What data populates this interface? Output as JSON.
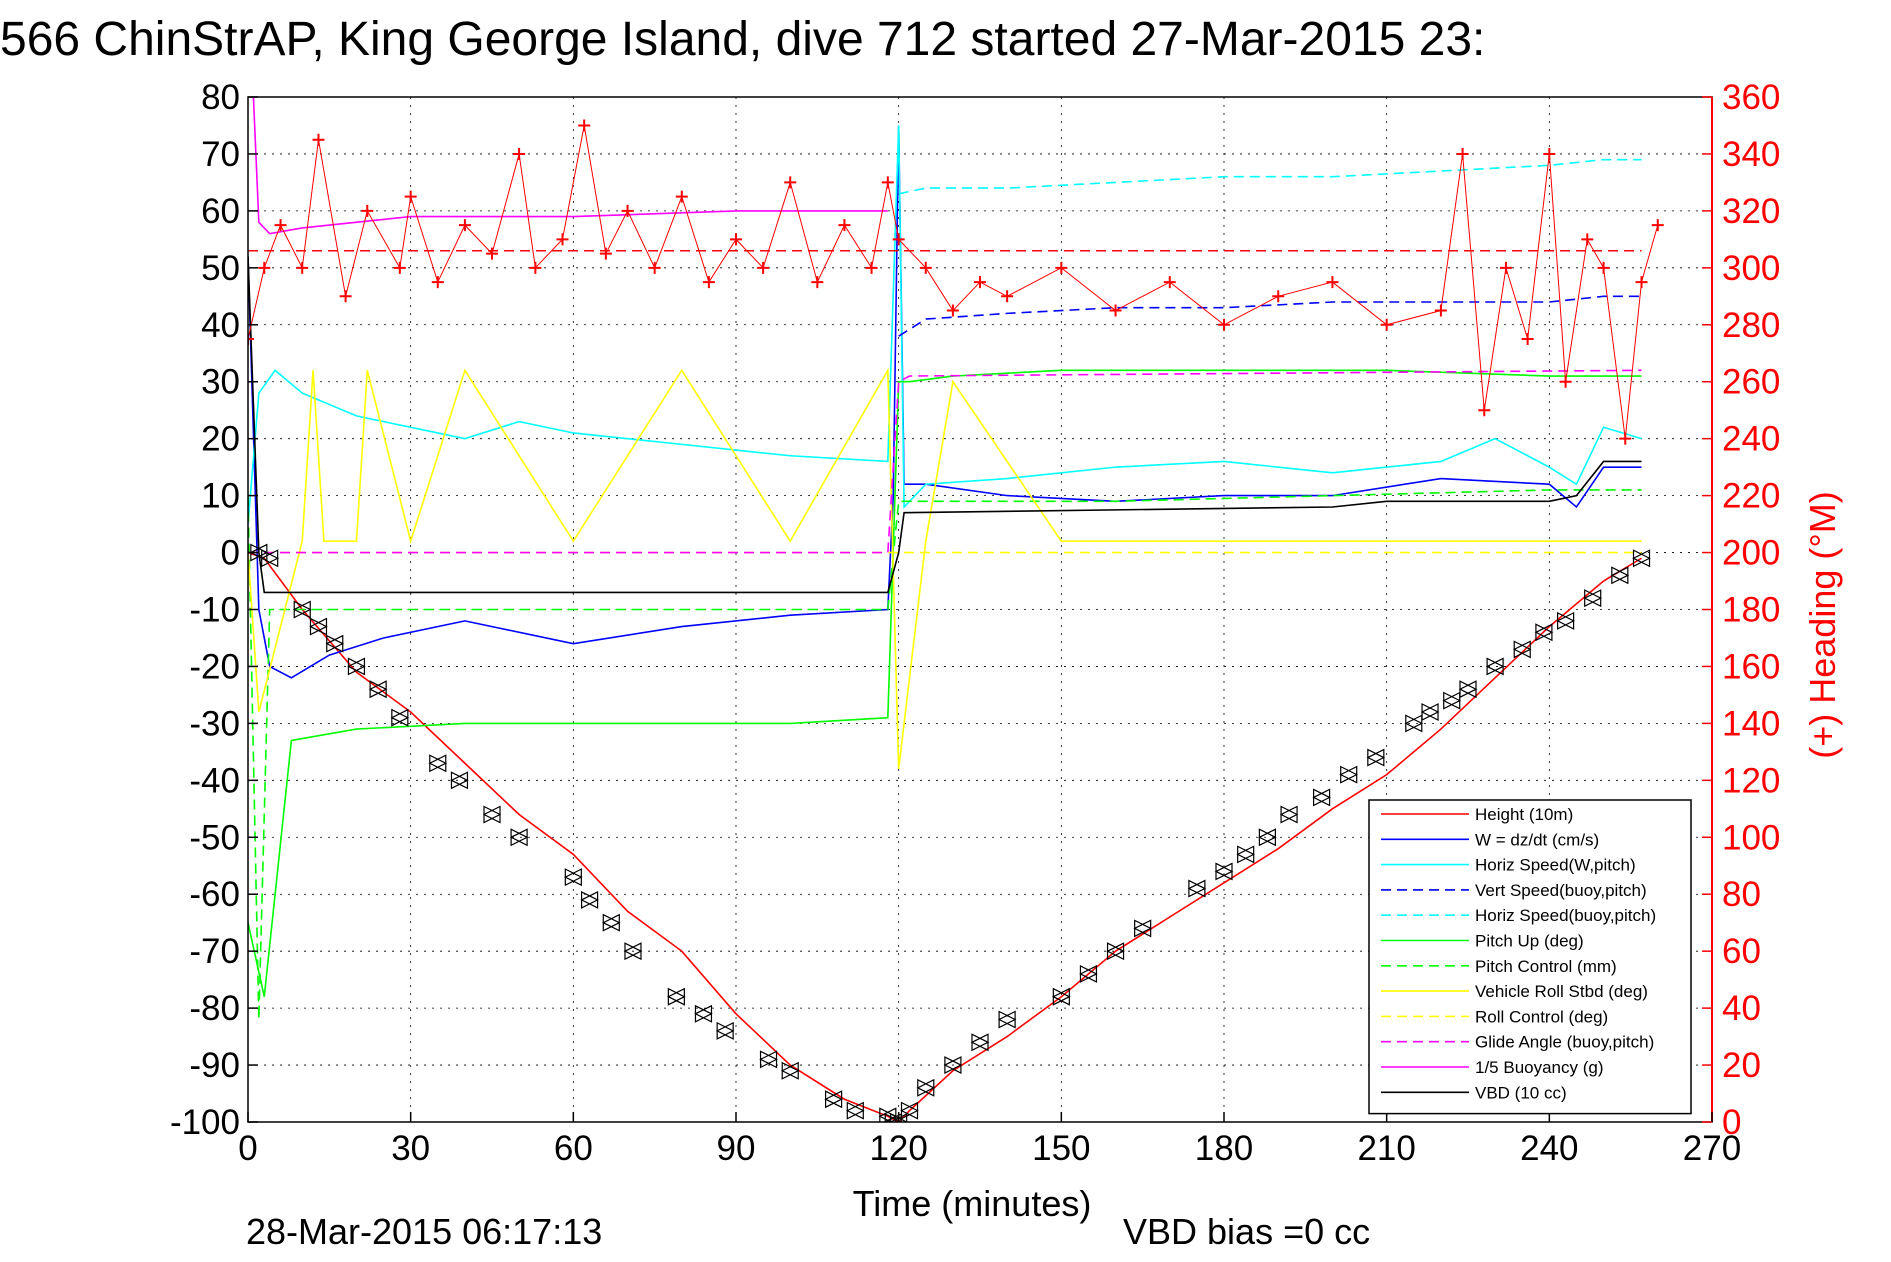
{
  "chart_data": {
    "type": "line",
    "title": "566 ChinStrAP, King George Island, dive 712 started 27-Mar-2015 23:",
    "xlabel": "Time (minutes)",
    "ylabel_right": "(+) Heading (°M)",
    "xlim": [
      0,
      270
    ],
    "ylim": [
      -100,
      80
    ],
    "ylim_right": [
      0,
      360
    ],
    "x_ticks": [
      0,
      30,
      60,
      90,
      120,
      150,
      180,
      210,
      240,
      270
    ],
    "y_ticks": [
      80,
      70,
      60,
      50,
      40,
      30,
      20,
      10,
      0,
      -10,
      -20,
      -30,
      -40,
      -50,
      -60,
      -70,
      -80,
      -90,
      -100
    ],
    "y_ticks_right": [
      360,
      340,
      320,
      300,
      280,
      260,
      240,
      220,
      200,
      180,
      160,
      140,
      120,
      100,
      80,
      60,
      40,
      20,
      0
    ],
    "grid": true,
    "legend_position": "bottom-right",
    "footer_date": "28-Mar-2015 06:17:13",
    "footer_vbd": "VBD bias =0 cc",
    "series": [
      {
        "name": "Height (10m)",
        "color": "#ff0000",
        "style": "solid",
        "x": [
          0,
          3,
          10,
          20,
          30,
          40,
          50,
          60,
          70,
          80,
          90,
          100,
          110,
          118,
          120,
          122,
          130,
          140,
          150,
          160,
          170,
          180,
          190,
          200,
          210,
          220,
          230,
          240,
          250,
          257
        ],
        "y": [
          0,
          -1,
          -10,
          -21,
          -28,
          -37,
          -46,
          -53,
          -63,
          -70,
          -81,
          -90,
          -96,
          -99,
          -100,
          -98,
          -91,
          -85,
          -78,
          -70,
          -64,
          -58,
          -52,
          -45,
          -39,
          -31,
          -22,
          -13,
          -5,
          -1
        ]
      },
      {
        "name": "W = dz/dt (cm/s)",
        "color": "#0000ff",
        "style": "solid",
        "x": [
          0,
          2,
          4,
          8,
          15,
          25,
          40,
          60,
          80,
          100,
          118,
          119,
          120,
          121,
          125,
          140,
          160,
          180,
          200,
          220,
          240,
          245,
          250,
          257
        ],
        "y": [
          52,
          -10,
          -20,
          -22,
          -18,
          -15,
          -12,
          -16,
          -13,
          -11,
          -10,
          10,
          75,
          12,
          12,
          10,
          9,
          10,
          10,
          13,
          12,
          8,
          15,
          15
        ]
      },
      {
        "name": "Horiz Speed(W,pitch)",
        "color": "#00ffff",
        "style": "solid",
        "x": [
          0,
          2,
          5,
          10,
          20,
          40,
          50,
          60,
          80,
          100,
          118,
          120,
          121,
          125,
          140,
          160,
          180,
          200,
          220,
          230,
          240,
          245,
          250,
          257
        ],
        "y": [
          5,
          28,
          32,
          28,
          24,
          20,
          23,
          21,
          19,
          17,
          16,
          75,
          8,
          12,
          13,
          15,
          16,
          14,
          16,
          20,
          15,
          12,
          22,
          20
        ]
      },
      {
        "name": "Vert Speed(buoy,pitch)",
        "color": "#0000ff",
        "style": "dashed",
        "x": [
          120,
          125,
          140,
          160,
          180,
          200,
          220,
          240,
          250,
          257
        ],
        "y": [
          38,
          41,
          42,
          43,
          43,
          44,
          44,
          44,
          45,
          45
        ]
      },
      {
        "name": "Horiz Speed(buoy,pitch)",
        "color": "#00ffff",
        "style": "dashed",
        "x": [
          120,
          125,
          140,
          160,
          180,
          200,
          220,
          240,
          250,
          257
        ],
        "y": [
          63,
          64,
          64,
          65,
          66,
          66,
          67,
          68,
          69,
          69
        ]
      },
      {
        "name": "Pitch Up (deg)",
        "color": "#00ff00",
        "style": "solid",
        "x": [
          0,
          3,
          8,
          20,
          40,
          60,
          80,
          100,
          118,
          120,
          122,
          130,
          150,
          180,
          210,
          240,
          257
        ],
        "y": [
          -65,
          -78,
          -33,
          -31,
          -30,
          -30,
          -30,
          -30,
          -29,
          30,
          30,
          31,
          32,
          32,
          32,
          31,
          31
        ]
      },
      {
        "name": "Pitch Control (mm)",
        "color": "#00ff00",
        "style": "dashed",
        "x": [
          0,
          2,
          4,
          10,
          60,
          118,
          120,
          122,
          160,
          200,
          240,
          257
        ],
        "y": [
          10,
          -82,
          -10,
          -10,
          -10,
          -10,
          9,
          9,
          9,
          10,
          11,
          11
        ]
      },
      {
        "name": "Vehicle Roll Stbd (deg)",
        "color": "#ffff00",
        "style": "solid",
        "x": [
          0,
          2,
          10,
          12,
          14,
          20,
          22,
          30,
          40,
          60,
          80,
          100,
          118,
          120,
          125,
          130,
          150,
          200,
          240,
          257
        ],
        "y": [
          0,
          -28,
          2,
          32,
          2,
          2,
          32,
          2,
          32,
          2,
          32,
          2,
          32,
          -38,
          2,
          30,
          2,
          2,
          2,
          2
        ]
      },
      {
        "name": "Roll Control (deg)",
        "color": "#ffff00",
        "style": "dashed",
        "x": [
          0,
          120,
          257
        ],
        "y": [
          0,
          0,
          0
        ]
      },
      {
        "name": "Glide Angle (buoy,pitch)",
        "color": "#ff00ff",
        "style": "dashed",
        "x": [
          0,
          118,
          120,
          122,
          257
        ],
        "y": [
          0,
          0,
          30,
          31,
          32
        ]
      },
      {
        "name": "1/5 Buoyancy (g)",
        "color": "#ff00ff",
        "style": "solid",
        "x": [
          1,
          2,
          4,
          10,
          30,
          60,
          90,
          118
        ],
        "y": [
          80,
          58,
          56,
          57,
          59,
          59,
          60,
          60
        ]
      },
      {
        "name": "VBD (10 cc)",
        "color": "#000000",
        "style": "solid",
        "x": [
          0,
          2,
          3,
          118,
          120,
          121,
          200,
          210,
          240,
          245,
          250,
          257
        ],
        "y": [
          52,
          0,
          -7,
          -7,
          0,
          7,
          8,
          9,
          9,
          10,
          16,
          16
        ]
      },
      {
        "name": "",
        "color": "#ff0000",
        "style": "dashed-right-axis",
        "x": [
          0,
          257
        ],
        "y_right": [
          306,
          306
        ]
      },
      {
        "name": "",
        "color": "#ff0000",
        "style": "markers-plus-right-axis",
        "x": [
          0,
          3,
          6,
          10,
          13,
          18,
          22,
          28,
          30,
          35,
          40,
          45,
          50,
          53,
          58,
          62,
          66,
          70,
          75,
          80,
          85,
          90,
          95,
          100,
          105,
          110,
          115,
          118,
          120,
          125,
          130,
          135,
          140,
          150,
          160,
          170,
          180,
          190,
          200,
          210,
          220,
          224,
          228,
          232,
          236,
          240,
          243,
          247,
          250,
          254,
          257,
          260
        ],
        "y_right": [
          275,
          300,
          315,
          300,
          345,
          290,
          320,
          300,
          325,
          295,
          315,
          305,
          340,
          300,
          310,
          350,
          305,
          320,
          300,
          325,
          295,
          310,
          300,
          330,
          295,
          315,
          300,
          330,
          310,
          300,
          285,
          295,
          290,
          300,
          285,
          295,
          280,
          290,
          295,
          280,
          285,
          340,
          250,
          300,
          275,
          340,
          260,
          310,
          300,
          240,
          295,
          315
        ]
      },
      {
        "name": "",
        "color": "#000000",
        "style": "markers-triangle",
        "x": [
          2,
          4,
          10,
          13,
          16,
          20,
          24,
          28,
          35,
          39,
          45,
          50,
          60,
          63,
          67,
          71,
          79,
          84,
          88,
          96,
          100,
          108,
          112,
          118,
          119,
          120,
          122,
          125,
          130,
          135,
          140,
          150,
          155,
          160,
          165,
          175,
          180,
          184,
          188,
          192,
          198,
          203,
          208,
          215,
          218,
          222,
          225,
          230,
          235,
          239,
          243,
          248,
          253,
          257
        ],
        "y": [
          0,
          -1,
          -10,
          -13,
          -16,
          -20,
          -24,
          -29,
          -37,
          -40,
          -46,
          -50,
          -57,
          -61,
          -65,
          -70,
          -78,
          -81,
          -84,
          -89,
          -91,
          -96,
          -98,
          -99,
          -100,
          -100,
          -98,
          -94,
          -90,
          -86,
          -82,
          -78,
          -74,
          -70,
          -66,
          -59,
          -56,
          -53,
          -50,
          -46,
          -43,
          -39,
          -36,
          -30,
          -28,
          -26,
          -24,
          -20,
          -17,
          -14,
          -12,
          -8,
          -4,
          -1
        ]
      }
    ]
  }
}
